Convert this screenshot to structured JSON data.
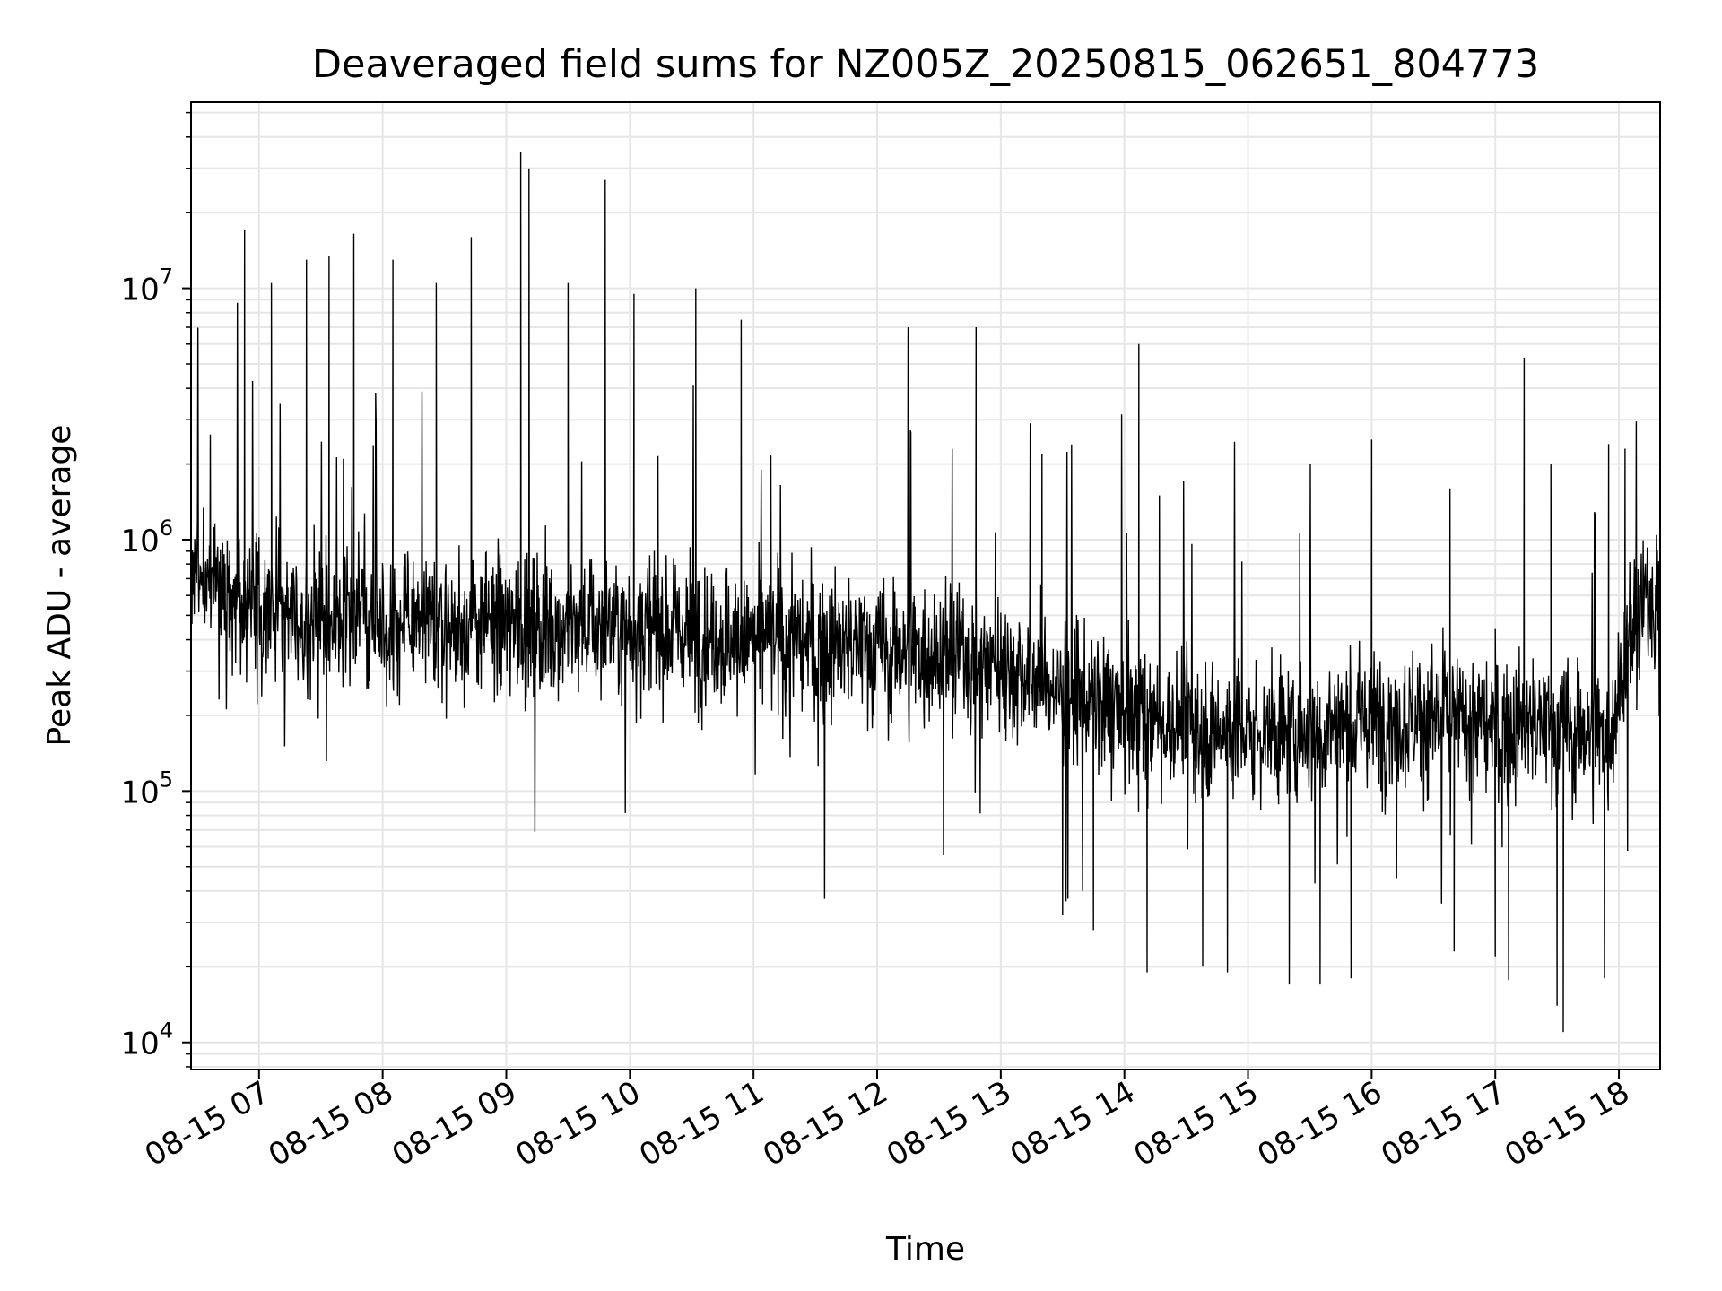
{
  "chart_data": {
    "type": "line",
    "title": "Deaveraged field sums for NZ005Z_20250815_062651_804773",
    "xlabel": "Time",
    "ylabel": "Peak ADU - average",
    "yscale": "log",
    "xlim": [
      "2025-08-15 06:27",
      "2025-08-15 18:20"
    ],
    "ylim": [
      7800,
      55000000
    ],
    "x_ticks": [
      "2025-08-15 07:00",
      "2025-08-15 08:00",
      "2025-08-15 09:00",
      "2025-08-15 10:00",
      "2025-08-15 11:00",
      "2025-08-15 12:00",
      "2025-08-15 13:00",
      "2025-08-15 14:00",
      "2025-08-15 15:00",
      "2025-08-15 16:00",
      "2025-08-15 17:00",
      "2025-08-15 18:00"
    ],
    "x_tick_labels": [
      "08-15 07",
      "08-15 08",
      "08-15 09",
      "08-15 10",
      "08-15 11",
      "08-15 12",
      "08-15 13",
      "08-15 14",
      "08-15 15",
      "08-15 16",
      "08-15 17",
      "08-15 18"
    ],
    "y_ticks": [
      {
        "value": 10000,
        "base": "10",
        "exp": "4"
      },
      {
        "value": 100000,
        "base": "10",
        "exp": "5"
      },
      {
        "value": 1000000,
        "base": "10",
        "exp": "6"
      },
      {
        "value": 10000000,
        "base": "10",
        "exp": "7"
      }
    ],
    "grid": true,
    "line_color": "#000000",
    "grid_color": "#e6e6e6",
    "series": [
      {
        "x": [
          "2025-08-15 06:27",
          "2025-08-15 06:40",
          "2025-08-15 06:50",
          "2025-08-15 07:00",
          "2025-08-15 07:15",
          "2025-08-15 07:30",
          "2025-08-15 07:45",
          "2025-08-15 08:00",
          "2025-08-15 08:20",
          "2025-08-15 08:40",
          "2025-08-15 09:00",
          "2025-08-15 09:20",
          "2025-08-15 09:40",
          "2025-08-15 10:00",
          "2025-08-15 10:30",
          "2025-08-15 11:00",
          "2025-08-15 11:30",
          "2025-08-15 12:00",
          "2025-08-15 12:30",
          "2025-08-15 12:50",
          "2025-08-15 13:10",
          "2025-08-15 13:30",
          "2025-08-15 14:00",
          "2025-08-15 14:30",
          "2025-08-15 15:00",
          "2025-08-15 15:30",
          "2025-08-15 16:00",
          "2025-08-15 16:30",
          "2025-08-15 17:00",
          "2025-08-15 17:30",
          "2025-08-15 17:55",
          "2025-08-15 18:05",
          "2025-08-15 18:20"
        ],
        "baseline": [
          800000,
          650000,
          600000,
          550000,
          520000,
          500000,
          490000,
          480000,
          470000,
          470000,
          460000,
          460000,
          455000,
          450000,
          430000,
          400000,
          380000,
          370000,
          360000,
          340000,
          300000,
          250000,
          200000,
          180000,
          170000,
          175000,
          190000,
          200000,
          180000,
          180000,
          170000,
          400000,
          700000
        ],
        "spikes": [
          {
            "x": "2025-08-15 06:53",
            "y": 17000000
          },
          {
            "x": "2025-08-15 07:06",
            "y": 10500000
          },
          {
            "x": "2025-08-15 07:23",
            "y": 13000000
          },
          {
            "x": "2025-08-15 07:34",
            "y": 13500000
          },
          {
            "x": "2025-08-15 07:46",
            "y": 16500000
          },
          {
            "x": "2025-08-15 08:05",
            "y": 13000000
          },
          {
            "x": "2025-08-15 08:26",
            "y": 10500000
          },
          {
            "x": "2025-08-15 08:43",
            "y": 16000000
          },
          {
            "x": "2025-08-15 09:07",
            "y": 35000000
          },
          {
            "x": "2025-08-15 09:11",
            "y": 30000000
          },
          {
            "x": "2025-08-15 09:30",
            "y": 10500000
          },
          {
            "x": "2025-08-15 09:48",
            "y": 27000000
          },
          {
            "x": "2025-08-15 10:02",
            "y": 9500000
          },
          {
            "x": "2025-08-15 10:32",
            "y": 10000000
          },
          {
            "x": "2025-08-15 10:54",
            "y": 7500000
          },
          {
            "x": "2025-08-15 12:15",
            "y": 7000000
          },
          {
            "x": "2025-08-15 12:48",
            "y": 7000000
          },
          {
            "x": "2025-08-15 13:20",
            "y": 2200000
          },
          {
            "x": "2025-08-15 14:07",
            "y": 6000000
          },
          {
            "x": "2025-08-15 14:17",
            "y": 1500000
          },
          {
            "x": "2025-08-15 16:00",
            "y": 2500000
          },
          {
            "x": "2025-08-15 16:38",
            "y": 1600000
          },
          {
            "x": "2025-08-15 17:14",
            "y": 5300000
          },
          {
            "x": "2025-08-15 17:27",
            "y": 2000000
          },
          {
            "x": "2025-08-15 17:55",
            "y": 2400000
          },
          {
            "x": "2025-08-15 18:03",
            "y": 2300000
          }
        ],
        "dips": [
          {
            "x": "2025-08-15 13:30",
            "y": 32000
          },
          {
            "x": "2025-08-15 13:45",
            "y": 28000
          },
          {
            "x": "2025-08-15 14:11",
            "y": 19000
          },
          {
            "x": "2025-08-15 14:38",
            "y": 20000
          },
          {
            "x": "2025-08-15 14:50",
            "y": 19000
          },
          {
            "x": "2025-08-15 15:20",
            "y": 17000
          },
          {
            "x": "2025-08-15 15:35",
            "y": 17000
          },
          {
            "x": "2025-08-15 15:50",
            "y": 18000
          },
          {
            "x": "2025-08-15 16:40",
            "y": 23000
          },
          {
            "x": "2025-08-15 17:00",
            "y": 22000
          },
          {
            "x": "2025-08-15 17:30",
            "y": 14000
          },
          {
            "x": "2025-08-15 17:33",
            "y": 11000
          },
          {
            "x": "2025-08-15 17:53",
            "y": 18000
          }
        ]
      }
    ]
  }
}
